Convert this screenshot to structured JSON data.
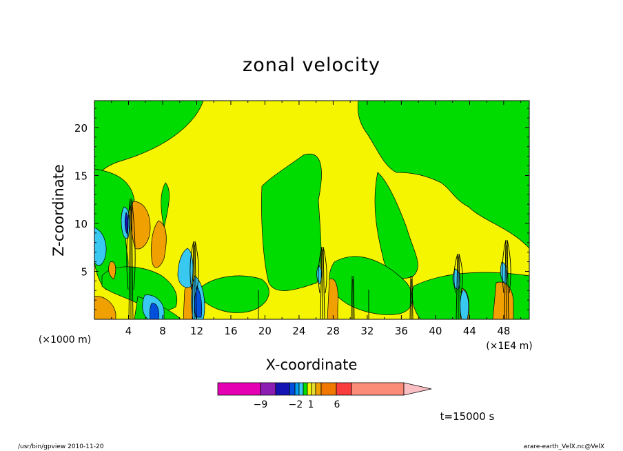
{
  "chart_data": {
    "type": "heatmap",
    "title": "zonal velocity",
    "xlabel": "X-coordinate",
    "ylabel": "Z-coordinate",
    "x_unit_note": "(×1000 m)",
    "x_scale_note": "(×1E4 m)",
    "xlim": [
      0,
      51
    ],
    "ylim": [
      0,
      22.8
    ],
    "x_ticks": [
      "4",
      "8",
      "12",
      "16",
      "20",
      "24",
      "28",
      "32",
      "36",
      "40",
      "44",
      "48"
    ],
    "y_ticks": [
      "5",
      "10",
      "15",
      "20"
    ],
    "time_label": "t=15000 s",
    "colorbar": {
      "labels": [
        "−9",
        "−2",
        "1",
        "6"
      ],
      "colors": [
        "#e600b4",
        "#8c1eb4",
        "#1414b4",
        "#0050dc",
        "#00a0f0",
        "#38c8f0",
        "#00dc00",
        "#f5f500",
        "#e6dc32",
        "#f0a000",
        "#f07800",
        "#fa3c3c",
        "#fa8c78",
        "#fabec3"
      ]
    },
    "features": [
      {
        "name": "rising plume",
        "x": 4.3,
        "top": 12.9
      },
      {
        "name": "rising plume",
        "x": 12.2,
        "top": 8.4
      },
      {
        "name": "rising plume",
        "x": 26.8,
        "top": 7.4
      },
      {
        "name": "rising plume",
        "x": 42.8,
        "top": 7.6
      },
      {
        "name": "rising plume",
        "x": 48.5,
        "top": 8.3
      }
    ]
  },
  "footer": {
    "left": "/usr/bin/gpview   2010-11-20",
    "right": "arare-earth_VelX.nc@VelX"
  }
}
